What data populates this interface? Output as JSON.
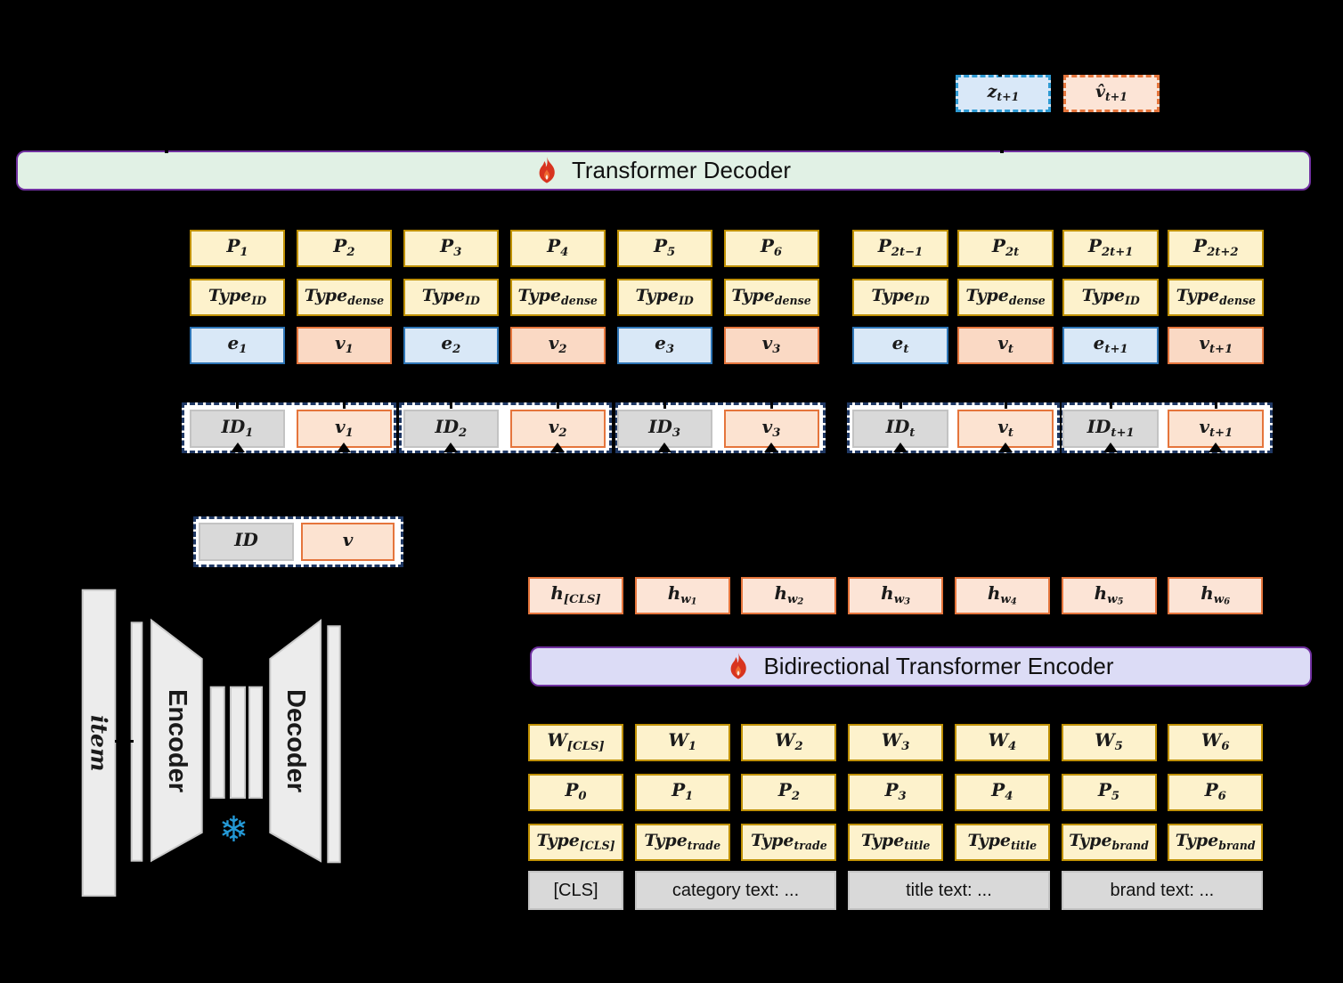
{
  "colors": {
    "background": "#000000",
    "yellow_fill": "#fdf2cc",
    "yellow_border": "#bf9000",
    "blue_fill": "#d9e8f7",
    "blue_border": "#2e75b6",
    "orange_fill": "#fad9c4",
    "orange_border": "#e5753c",
    "peach_fill": "#fce4d6",
    "gray_fill": "#d9d9d9",
    "container_fill": "#ffffff",
    "container_dash": "#1f3864",
    "decoder_bar_fill": "#e1f1e5",
    "encoder_bar_fill": "#dcdcf6",
    "bar_border": "#7030a0",
    "snowflake_blue": "#2499d6",
    "flame_red": "#d8341f"
  },
  "icons": {
    "snowflake": "❄",
    "flame": "flame"
  },
  "top_outputs": {
    "z": {
      "main": "z",
      "sub": "t+1"
    },
    "v_hat": {
      "main": "v̂",
      "sub": "t+1"
    }
  },
  "decoder_bar": {
    "label": "Transformer Decoder"
  },
  "encoder_bar": {
    "label": "Bidirectional Transformer Encoder"
  },
  "decoder_grid": {
    "left": {
      "p": [
        {
          "main": "P",
          "sub": "1"
        },
        {
          "main": "P",
          "sub": "2"
        },
        {
          "main": "P",
          "sub": "3"
        },
        {
          "main": "P",
          "sub": "4"
        },
        {
          "main": "P",
          "sub": "5"
        },
        {
          "main": "P",
          "sub": "6"
        }
      ],
      "type": [
        {
          "main": "Type",
          "sub": "ID"
        },
        {
          "main": "Type",
          "sub": "dense"
        },
        {
          "main": "Type",
          "sub": "ID"
        },
        {
          "main": "Type",
          "sub": "dense"
        },
        {
          "main": "Type",
          "sub": "ID"
        },
        {
          "main": "Type",
          "sub": "dense"
        }
      ],
      "ev": [
        {
          "main": "e",
          "sub": "1",
          "variant": "blue"
        },
        {
          "main": "v",
          "sub": "1",
          "variant": "orange"
        },
        {
          "main": "e",
          "sub": "2",
          "variant": "blue"
        },
        {
          "main": "v",
          "sub": "2",
          "variant": "orange"
        },
        {
          "main": "e",
          "sub": "3",
          "variant": "blue"
        },
        {
          "main": "v",
          "sub": "3",
          "variant": "orange"
        }
      ]
    },
    "right": {
      "p": [
        {
          "main": "P",
          "sub": "2t−1"
        },
        {
          "main": "P",
          "sub": "2t"
        },
        {
          "main": "P",
          "sub": "2t+1"
        },
        {
          "main": "P",
          "sub": "2t+2"
        }
      ],
      "type": [
        {
          "main": "Type",
          "sub": "ID"
        },
        {
          "main": "Type",
          "sub": "dense"
        },
        {
          "main": "Type",
          "sub": "ID"
        },
        {
          "main": "Type",
          "sub": "dense"
        }
      ],
      "ev": [
        {
          "main": "e",
          "sub": "t",
          "variant": "blue"
        },
        {
          "main": "v",
          "sub": "t",
          "variant": "orange"
        },
        {
          "main": "e",
          "sub": "t+1",
          "variant": "blue"
        },
        {
          "main": "v",
          "sub": "t+1",
          "variant": "orange"
        }
      ]
    }
  },
  "id_groups": {
    "left": [
      [
        {
          "main": "ID",
          "sub": "1"
        },
        {
          "main": "v",
          "sub": "1"
        }
      ],
      [
        {
          "main": "ID",
          "sub": "2"
        },
        {
          "main": "v",
          "sub": "2"
        }
      ],
      [
        {
          "main": "ID",
          "sub": "3"
        },
        {
          "main": "v",
          "sub": "3"
        }
      ]
    ],
    "right": [
      [
        {
          "main": "ID",
          "sub": "t"
        },
        {
          "main": "v",
          "sub": "t"
        }
      ],
      [
        {
          "main": "ID",
          "sub": "t+1"
        },
        {
          "main": "v",
          "sub": "t+1"
        }
      ]
    ]
  },
  "item_tuple": {
    "id": {
      "main": "ID"
    },
    "v": {
      "main": "v"
    }
  },
  "autoencoder": {
    "item_label": "item",
    "encoder_label": "Encoder",
    "decoder_label": "Decoder"
  },
  "hidden_row": [
    {
      "main": "h",
      "sub": "[CLS]"
    },
    {
      "main": "h",
      "sub": "w",
      "sub2": "1"
    },
    {
      "main": "h",
      "sub": "w",
      "sub2": "2"
    },
    {
      "main": "h",
      "sub": "w",
      "sub2": "3"
    },
    {
      "main": "h",
      "sub": "w",
      "sub2": "4"
    },
    {
      "main": "h",
      "sub": "w",
      "sub2": "5"
    },
    {
      "main": "h",
      "sub": "w",
      "sub2": "6"
    }
  ],
  "encoder_grid": {
    "w": [
      {
        "main": "W",
        "sub": "[CLS]"
      },
      {
        "main": "W",
        "sub": "1"
      },
      {
        "main": "W",
        "sub": "2"
      },
      {
        "main": "W",
        "sub": "3"
      },
      {
        "main": "W",
        "sub": "4"
      },
      {
        "main": "W",
        "sub": "5"
      },
      {
        "main": "W",
        "sub": "6"
      }
    ],
    "p": [
      {
        "main": "P",
        "sub": "0"
      },
      {
        "main": "P",
        "sub": "1"
      },
      {
        "main": "P",
        "sub": "2"
      },
      {
        "main": "P",
        "sub": "3"
      },
      {
        "main": "P",
        "sub": "4"
      },
      {
        "main": "P",
        "sub": "5"
      },
      {
        "main": "P",
        "sub": "6"
      }
    ],
    "type": [
      {
        "main": "Type",
        "sub": "[CLS]"
      },
      {
        "main": "Type",
        "sub": "trade"
      },
      {
        "main": "Type",
        "sub": "trade"
      },
      {
        "main": "Type",
        "sub": "title"
      },
      {
        "main": "Type",
        "sub": "title"
      },
      {
        "main": "Type",
        "sub": "brand"
      },
      {
        "main": "Type",
        "sub": "brand"
      }
    ],
    "texts": [
      {
        "label": "[CLS]",
        "cols": 1
      },
      {
        "label": "category text: ...",
        "cols": 2
      },
      {
        "label": "title text: ...",
        "cols": 2
      },
      {
        "label": "brand text: ...",
        "cols": 2
      }
    ]
  }
}
